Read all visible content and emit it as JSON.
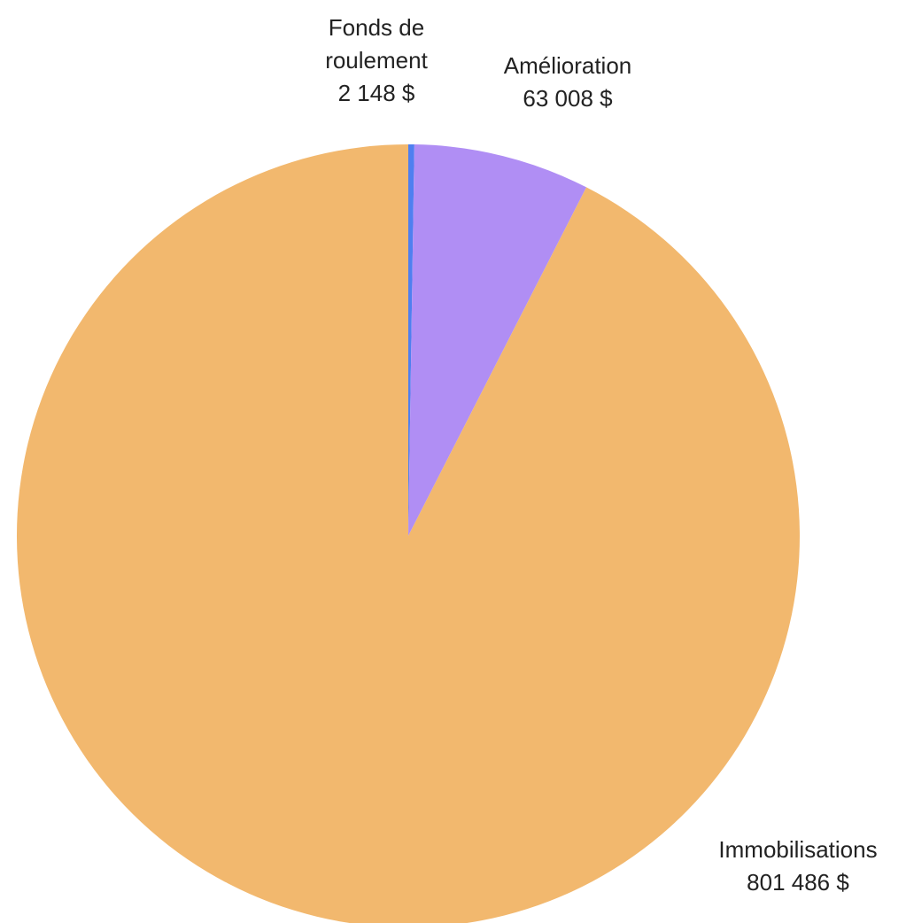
{
  "chart_data": {
    "type": "pie",
    "title": "",
    "start_angle_deg": 0,
    "direction": "clockwise",
    "slices": [
      {
        "label_lines": [
          "Fonds de",
          "roulement"
        ],
        "value": 2148,
        "value_label": "2 148 $",
        "color": "#4f7ff0"
      },
      {
        "label_lines": [
          "Amélioration"
        ],
        "value": 63008,
        "value_label": "63 008 $",
        "color": "#b08ef4"
      },
      {
        "label_lines": [
          "Immobilisations"
        ],
        "value": 801486,
        "value_label": "801 486 $",
        "color": "#f2b86e"
      }
    ]
  }
}
